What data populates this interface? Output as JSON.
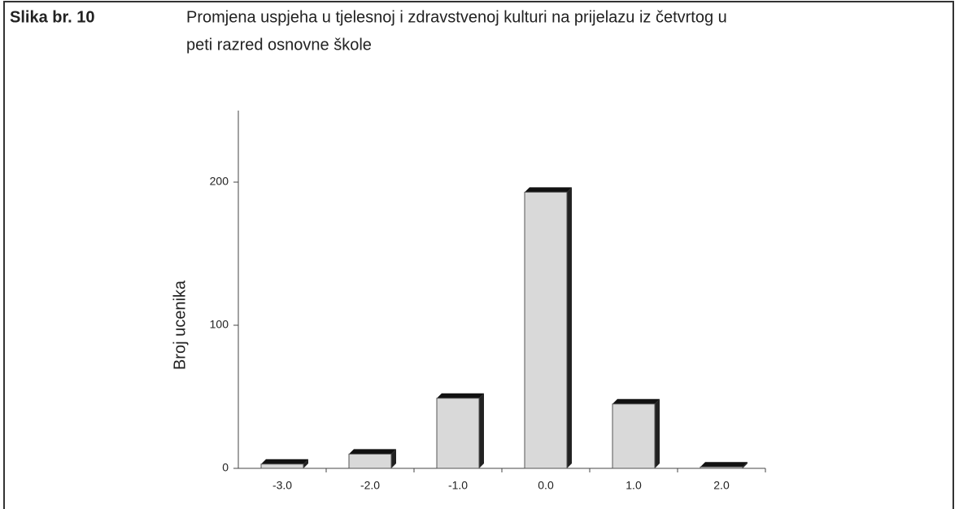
{
  "figure_label": "Slika br. 10",
  "title_lines": [
    "Promjena uspjeha u tjelesnoj i zdravstvenoj kulturi na prijelazu iz četvrtog u",
    "peti razred osnovne škole"
  ],
  "chart_data": {
    "type": "bar",
    "categories": [
      "-3.0",
      "-2.0",
      "-1.0",
      "0.0",
      "1.0",
      "2.0"
    ],
    "values": [
      3,
      10,
      49,
      193,
      45,
      1
    ],
    "color": "#d9d9d9",
    "ylabel": "Broj ucenika",
    "ylim": [
      0,
      250
    ],
    "yticks": [
      0,
      100,
      200
    ],
    "grid": false
  }
}
